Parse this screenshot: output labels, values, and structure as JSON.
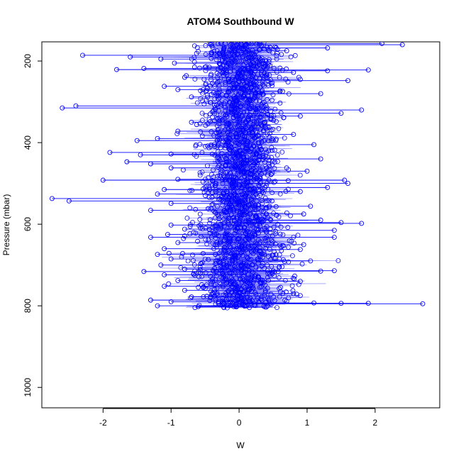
{
  "chart_data": {
    "type": "scatter",
    "title": "ATOM4 Southbound W",
    "xlabel": "W",
    "ylabel": "Pressure (mbar)",
    "xlim": [
      -2.9,
      2.95
    ],
    "ylim": [
      1050,
      153
    ],
    "y_reversed": true,
    "xticks": [
      -2,
      -1,
      0,
      1,
      2
    ],
    "xtick_labels": [
      "-2",
      "-1",
      "0",
      "1",
      "2"
    ],
    "yticks": [
      200,
      400,
      600,
      800,
      1000
    ],
    "ytick_labels": [
      "200",
      "400",
      "600",
      "800",
      "1000"
    ],
    "grid": false,
    "legend": "none",
    "series": [
      {
        "color": "#0000ff",
        "marker": "open-circle",
        "connected": true,
        "points": [
          [
            -2.3,
            186
          ],
          [
            -1.6,
            190
          ],
          [
            -1.15,
            195
          ],
          [
            -0.95,
            205
          ],
          [
            -0.5,
            215
          ],
          [
            -1.4,
            218
          ],
          [
            -1.8,
            221
          ],
          [
            1.9,
            222
          ],
          [
            1.3,
            224
          ],
          [
            0.8,
            228
          ],
          [
            -0.8,
            240
          ],
          [
            0.9,
            245
          ],
          [
            1.6,
            248
          ],
          [
            -1.1,
            262
          ],
          [
            -0.9,
            270
          ],
          [
            0.6,
            275
          ],
          [
            1.2,
            280
          ],
          [
            -0.7,
            288
          ],
          [
            -2.6,
            315
          ],
          [
            -2.4,
            310
          ],
          [
            1.8,
            320
          ],
          [
            1.5,
            328
          ],
          [
            0.9,
            335
          ],
          [
            -0.7,
            350
          ],
          [
            -0.9,
            372
          ],
          [
            0.8,
            380
          ],
          [
            -1.5,
            395
          ],
          [
            -1.2,
            390
          ],
          [
            1.1,
            405
          ],
          [
            -1.9,
            424
          ],
          [
            -1.45,
            430
          ],
          [
            -1.0,
            428
          ],
          [
            1.2,
            440
          ],
          [
            -1.65,
            447
          ],
          [
            -1.3,
            452
          ],
          [
            -1.0,
            462
          ],
          [
            1.0,
            470
          ],
          [
            -2.0,
            492
          ],
          [
            -0.9,
            490
          ],
          [
            1.55,
            492
          ],
          [
            1.6,
            500
          ],
          [
            1.3,
            510
          ],
          [
            -1.1,
            515
          ],
          [
            -1.2,
            526
          ],
          [
            0.9,
            520
          ],
          [
            -2.75,
            537
          ],
          [
            -2.5,
            543
          ],
          [
            -1.0,
            549
          ],
          [
            1.05,
            556
          ],
          [
            -1.3,
            566
          ],
          [
            0.95,
            575
          ],
          [
            1.8,
            598
          ],
          [
            1.5,
            596
          ],
          [
            1.2,
            590
          ],
          [
            -1.0,
            602
          ],
          [
            -0.8,
            612
          ],
          [
            1.4,
            615
          ],
          [
            -1.05,
            625
          ],
          [
            -1.3,
            632
          ],
          [
            1.4,
            632
          ],
          [
            -0.9,
            645
          ],
          [
            0.95,
            650
          ],
          [
            -1.1,
            660
          ],
          [
            0.9,
            662
          ],
          [
            -1.2,
            674
          ],
          [
            -1.0,
            685
          ],
          [
            1.05,
            690
          ],
          [
            -1.15,
            700
          ],
          [
            -0.8,
            710
          ],
          [
            -1.4,
            716
          ],
          [
            -1.1,
            724
          ],
          [
            1.4,
            714
          ],
          [
            1.2,
            715
          ],
          [
            -0.9,
            738
          ],
          [
            0.9,
            740
          ],
          [
            -1.1,
            752
          ],
          [
            -0.8,
            762
          ],
          [
            0.8,
            770
          ],
          [
            -0.7,
            778
          ],
          [
            0.9,
            775
          ],
          [
            -1.3,
            786
          ],
          [
            -1.0,
            790
          ],
          [
            1.1,
            793
          ],
          [
            1.5,
            794
          ],
          [
            1.9,
            794
          ],
          [
            2.7,
            795
          ],
          [
            -1.2,
            800
          ],
          [
            -0.6,
            802
          ],
          [
            0.4,
            803
          ],
          [
            0.1,
            160
          ],
          [
            2.1,
            157
          ],
          [
            2.4,
            160
          ],
          [
            1.3,
            168
          ],
          [
            0.7,
            175
          ],
          [
            -0.4,
            180
          ]
        ]
      }
    ]
  }
}
